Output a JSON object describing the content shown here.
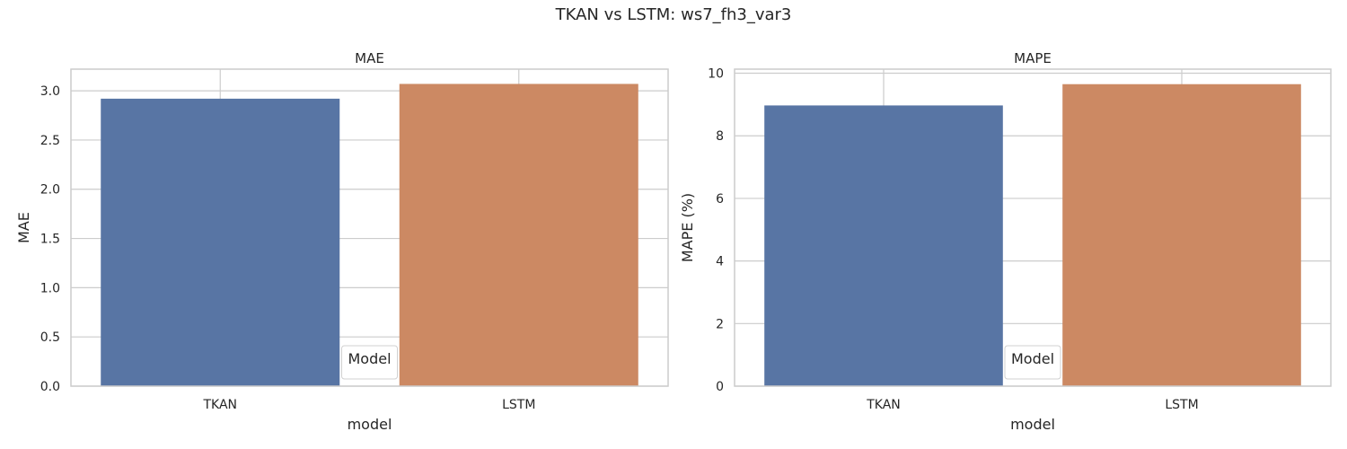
{
  "figure": {
    "title": "TKAN vs LSTM: ws7_fh3_var3"
  },
  "chart_data": [
    {
      "type": "bar",
      "title": "MAE",
      "xlabel": "model",
      "ylabel": "MAE",
      "categories": [
        "TKAN",
        "LSTM"
      ],
      "values": [
        2.92,
        3.07
      ],
      "colors": [
        "#5875a4",
        "#cc8963"
      ],
      "ylim": [
        0,
        3.22
      ],
      "yticks": [
        0.0,
        0.5,
        1.0,
        1.5,
        2.0,
        2.5,
        3.0
      ],
      "ytick_labels": [
        "0.0",
        "0.5",
        "1.0",
        "1.5",
        "2.0",
        "2.5",
        "3.0"
      ],
      "grid": true,
      "legend": {
        "title": "Model",
        "placement": "bottom-center"
      }
    },
    {
      "type": "bar",
      "title": "MAPE",
      "xlabel": "model",
      "ylabel": "MAPE (%)",
      "categories": [
        "TKAN",
        "LSTM"
      ],
      "values": [
        8.97,
        9.65
      ],
      "colors": [
        "#5875a4",
        "#cc8963"
      ],
      "ylim": [
        0,
        10.13
      ],
      "yticks": [
        0,
        2,
        4,
        6,
        8,
        10
      ],
      "ytick_labels": [
        "0",
        "2",
        "4",
        "6",
        "8",
        "10"
      ],
      "grid": true,
      "legend": {
        "title": "Model",
        "placement": "bottom-center"
      }
    }
  ]
}
